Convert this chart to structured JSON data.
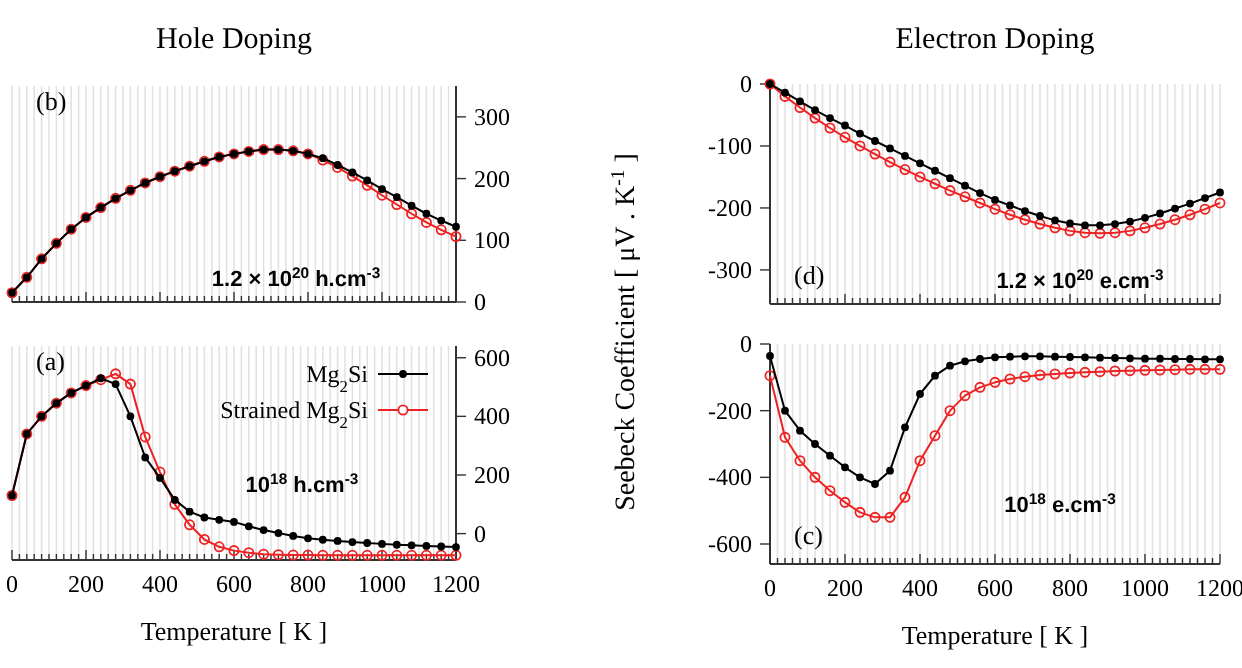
{
  "chart_data": [
    {
      "type": "line",
      "title": "Hole Doping",
      "annotations": [
        "(b)",
        "1.2 × 10$^{20}$ h.cm$^{-3}$"
      ],
      "x": [
        0,
        40,
        80,
        120,
        160,
        200,
        240,
        280,
        320,
        360,
        400,
        440,
        480,
        520,
        560,
        600,
        640,
        680,
        720,
        760,
        800,
        840,
        880,
        920,
        960,
        1000,
        1040,
        1080,
        1120,
        1160,
        1200
      ],
      "series": [
        {
          "color": "#000000",
          "values": [
            15,
            40,
            70,
            95,
            118,
            137,
            153,
            168,
            181,
            193,
            203,
            212,
            220,
            228,
            235,
            240,
            244,
            247,
            247,
            245,
            240,
            233,
            222,
            210,
            197,
            183,
            170,
            156,
            143,
            132,
            122
          ]
        },
        {
          "color": "#ee2222",
          "values": [
            15,
            40,
            70,
            95,
            118,
            137,
            153,
            168,
            181,
            193,
            203,
            212,
            220,
            228,
            235,
            240,
            244,
            247,
            247,
            245,
            240,
            230,
            218,
            204,
            189,
            173,
            158,
            143,
            129,
            117,
            106
          ]
        }
      ],
      "xlim": [
        0,
        1200
      ],
      "ylim": [
        0,
        350
      ],
      "yticks": [
        0,
        100,
        200,
        300
      ],
      "xticks": [
        0,
        {
          "value": 20,
          "label": null
        },
        {
          "value": 40,
          "label": null
        },
        {
          "value": 60,
          "label": null
        },
        {
          "value": 80,
          "label": null
        },
        {
          "value": 100,
          "label": null
        },
        {
          "value": 120,
          "label": null
        },
        {
          "value": 140,
          "label": null
        },
        {
          "value": 160,
          "label": null
        },
        {
          "value": 180,
          "label": null
        },
        200,
        {
          "value": 220,
          "label": null
        },
        {
          "value": 240,
          "label": null
        },
        {
          "value": 260,
          "label": null
        },
        {
          "value": 280,
          "label": null
        },
        {
          "value": 300,
          "label": null
        },
        {
          "value": 320,
          "label": null
        },
        {
          "value": 340,
          "label": null
        },
        {
          "value": 360,
          "label": null
        },
        {
          "value": 380,
          "label": null
        },
        400,
        {
          "value": 420,
          "label": null
        },
        {
          "value": 440,
          "label": null
        },
        {
          "value": 460,
          "label": null
        },
        {
          "value": 480,
          "label": null
        },
        {
          "value": 500,
          "label": null
        },
        {
          "value": 520,
          "label": null
        },
        {
          "value": 540,
          "label": null
        },
        {
          "value": 560,
          "label": null
        },
        {
          "value": 580,
          "label": null
        },
        600,
        {
          "value": 620,
          "label": null
        },
        {
          "value": 640,
          "label": null
        },
        {
          "value": 660,
          "label": null
        },
        {
          "value": 680,
          "label": null
        },
        {
          "value": 700,
          "label": null
        },
        {
          "value": 720,
          "label": null
        },
        {
          "value": 740,
          "label": null
        },
        {
          "value": 760,
          "label": null
        },
        {
          "value": 780,
          "label": null
        },
        800,
        {
          "value": 820,
          "label": null
        },
        {
          "value": 840,
          "label": null
        },
        {
          "value": 860,
          "label": null
        },
        {
          "value": 880,
          "label": null
        },
        {
          "value": 900,
          "label": null
        },
        {
          "value": 920,
          "label": null
        },
        {
          "value": 940,
          "label": null
        },
        {
          "value": 960,
          "label": null
        },
        {
          "value": 980,
          "label": null
        },
        1000,
        {
          "value": 1020,
          "label": null
        },
        {
          "value": 1040,
          "label": null
        },
        {
          "value": 1060,
          "label": null
        },
        {
          "value": 1080,
          "label": null
        },
        {
          "value": 1100,
          "label": null
        },
        {
          "value": 1120,
          "label": null
        },
        {
          "value": 1140,
          "label": null
        },
        {
          "value": 1160,
          "label": null
        },
        {
          "value": 1180,
          "label": null
        },
        1200
      ],
      "tick_labels": "y",
      "grid": "x",
      "marker": "circle",
      "line_style": "solid",
      "legend": false
    },
    {
      "type": "line",
      "title": "Electron Doping",
      "ylabel": "Seebeck Coefficient [ μV . K$^{-1}$ ]",
      "annotations": [
        "(d)",
        "1.2 × 10$^{20}$ e.cm$^{-3}$"
      ],
      "x": [
        0,
        40,
        80,
        120,
        160,
        200,
        240,
        280,
        320,
        360,
        400,
        440,
        480,
        520,
        560,
        600,
        640,
        680,
        720,
        760,
        800,
        840,
        880,
        920,
        960,
        1000,
        1040,
        1080,
        1120,
        1160,
        1200
      ],
      "series": [
        {
          "color": "#000000",
          "values": [
            0,
            -14,
            -28,
            -42,
            -55,
            -67,
            -80,
            -92,
            -104,
            -116,
            -128,
            -140,
            -152,
            -164,
            -176,
            -187,
            -196,
            -205,
            -213,
            -220,
            -225,
            -228,
            -228,
            -226,
            -222,
            -216,
            -209,
            -201,
            -193,
            -184,
            -175
          ]
        },
        {
          "color": "#ee2222",
          "values": [
            0,
            -20,
            -38,
            -55,
            -71,
            -86,
            -100,
            -113,
            -126,
            -138,
            -150,
            -161,
            -172,
            -182,
            -192,
            -202,
            -211,
            -219,
            -226,
            -232,
            -237,
            -240,
            -241,
            -240,
            -237,
            -232,
            -226,
            -219,
            -211,
            -202,
            -192
          ]
        }
      ],
      "xlim": [
        0,
        1200
      ],
      "ylim": [
        -355,
        0
      ],
      "yticks": [
        0,
        -100,
        -200,
        -300
      ],
      "xticks": [
        0,
        {
          "value": 20,
          "label": null
        },
        {
          "value": 40,
          "label": null
        },
        {
          "value": 60,
          "label": null
        },
        {
          "value": 80,
          "label": null
        },
        {
          "value": 100,
          "label": null
        },
        {
          "value": 120,
          "label": null
        },
        {
          "value": 140,
          "label": null
        },
        {
          "value": 160,
          "label": null
        },
        {
          "value": 180,
          "label": null
        },
        200,
        {
          "value": 220,
          "label": null
        },
        {
          "value": 240,
          "label": null
        },
        {
          "value": 260,
          "label": null
        },
        {
          "value": 280,
          "label": null
        },
        {
          "value": 300,
          "label": null
        },
        {
          "value": 320,
          "label": null
        },
        {
          "value": 340,
          "label": null
        },
        {
          "value": 360,
          "label": null
        },
        {
          "value": 380,
          "label": null
        },
        400,
        {
          "value": 420,
          "label": null
        },
        {
          "value": 440,
          "label": null
        },
        {
          "value": 460,
          "label": null
        },
        {
          "value": 480,
          "label": null
        },
        {
          "value": 500,
          "label": null
        },
        {
          "value": 520,
          "label": null
        },
        {
          "value": 540,
          "label": null
        },
        {
          "value": 560,
          "label": null
        },
        {
          "value": 580,
          "label": null
        },
        600,
        {
          "value": 620,
          "label": null
        },
        {
          "value": 640,
          "label": null
        },
        {
          "value": 660,
          "label": null
        },
        {
          "value": 680,
          "label": null
        },
        {
          "value": 700,
          "label": null
        },
        {
          "value": 720,
          "label": null
        },
        {
          "value": 740,
          "label": null
        },
        {
          "value": 760,
          "label": null
        },
        {
          "value": 780,
          "label": null
        },
        800,
        {
          "value": 820,
          "label": null
        },
        {
          "value": 840,
          "label": null
        },
        {
          "value": 860,
          "label": null
        },
        {
          "value": 880,
          "label": null
        },
        {
          "value": 900,
          "label": null
        },
        {
          "value": 920,
          "label": null
        },
        {
          "value": 940,
          "label": null
        },
        {
          "value": 960,
          "label": null
        },
        {
          "value": 980,
          "label": null
        },
        1000,
        {
          "value": 1020,
          "label": null
        },
        {
          "value": 1040,
          "label": null
        },
        {
          "value": 1060,
          "label": null
        },
        {
          "value": 1080,
          "label": null
        },
        {
          "value": 1100,
          "label": null
        },
        {
          "value": 1120,
          "label": null
        },
        {
          "value": 1140,
          "label": null
        },
        {
          "value": 1160,
          "label": null
        },
        {
          "value": 1180,
          "label": null
        },
        1200
      ],
      "tick_labels": "y",
      "grid": "x",
      "marker": "circle",
      "line_style": "solid",
      "legend": false
    },
    {
      "type": "line",
      "xlabel": "Temperature [ K ]",
      "annotations": [
        "(a)",
        "10$^{18}$ h.cm$^{-3}$"
      ],
      "x": [
        0,
        40,
        80,
        120,
        160,
        200,
        240,
        280,
        320,
        360,
        400,
        440,
        480,
        520,
        560,
        600,
        640,
        680,
        720,
        760,
        800,
        840,
        880,
        920,
        960,
        1000,
        1040,
        1080,
        1120,
        1160,
        1200
      ],
      "series": [
        {
          "name": "Mg$_{2}$Si",
          "color": "#000000",
          "values": [
            130,
            340,
            400,
            445,
            480,
            505,
            530,
            510,
            400,
            260,
            190,
            115,
            75,
            55,
            47,
            40,
            25,
            12,
            2,
            -8,
            -16,
            -21,
            -25,
            -29,
            -32,
            -35,
            -38,
            -40,
            -42,
            -44,
            -46
          ]
        },
        {
          "name": "Strained Mg$_{2}$Si",
          "color": "#ee2222",
          "values": [
            130,
            340,
            400,
            445,
            480,
            505,
            525,
            545,
            510,
            330,
            210,
            100,
            30,
            -20,
            -45,
            -58,
            -65,
            -70,
            -72,
            -73,
            -73,
            -74,
            -74,
            -74,
            -74,
            -74,
            -74,
            -74,
            -74,
            -74,
            -74
          ]
        }
      ],
      "xlim": [
        0,
        1200
      ],
      "ylim": [
        -90,
        640
      ],
      "yticks": [
        0,
        200,
        400,
        600
      ],
      "xticks": [
        0,
        {
          "value": 20,
          "label": null
        },
        {
          "value": 40,
          "label": null
        },
        {
          "value": 60,
          "label": null
        },
        {
          "value": 80,
          "label": null
        },
        {
          "value": 100,
          "label": null
        },
        {
          "value": 120,
          "label": null
        },
        {
          "value": 140,
          "label": null
        },
        {
          "value": 160,
          "label": null
        },
        {
          "value": 180,
          "label": null
        },
        200,
        {
          "value": 220,
          "label": null
        },
        {
          "value": 240,
          "label": null
        },
        {
          "value": 260,
          "label": null
        },
        {
          "value": 280,
          "label": null
        },
        {
          "value": 300,
          "label": null
        },
        {
          "value": 320,
          "label": null
        },
        {
          "value": 340,
          "label": null
        },
        {
          "value": 360,
          "label": null
        },
        {
          "value": 380,
          "label": null
        },
        400,
        {
          "value": 420,
          "label": null
        },
        {
          "value": 440,
          "label": null
        },
        {
          "value": 460,
          "label": null
        },
        {
          "value": 480,
          "label": null
        },
        {
          "value": 500,
          "label": null
        },
        {
          "value": 520,
          "label": null
        },
        {
          "value": 540,
          "label": null
        },
        {
          "value": 560,
          "label": null
        },
        {
          "value": 580,
          "label": null
        },
        600,
        {
          "value": 620,
          "label": null
        },
        {
          "value": 640,
          "label": null
        },
        {
          "value": 660,
          "label": null
        },
        {
          "value": 680,
          "label": null
        },
        {
          "value": 700,
          "label": null
        },
        {
          "value": 720,
          "label": null
        },
        {
          "value": 740,
          "label": null
        },
        {
          "value": 760,
          "label": null
        },
        {
          "value": 780,
          "label": null
        },
        800,
        {
          "value": 820,
          "label": null
        },
        {
          "value": 840,
          "label": null
        },
        {
          "value": 860,
          "label": null
        },
        {
          "value": 880,
          "label": null
        },
        {
          "value": 900,
          "label": null
        },
        {
          "value": 920,
          "label": null
        },
        {
          "value": 940,
          "label": null
        },
        {
          "value": 960,
          "label": null
        },
        {
          "value": 980,
          "label": null
        },
        1000,
        {
          "value": 1020,
          "label": null
        },
        {
          "value": 1040,
          "label": null
        },
        {
          "value": 1060,
          "label": null
        },
        {
          "value": 1080,
          "label": null
        },
        {
          "value": 1100,
          "label": null
        },
        {
          "value": 1120,
          "label": null
        },
        {
          "value": 1140,
          "label": null
        },
        {
          "value": 1160,
          "label": null
        },
        {
          "value": 1180,
          "label": null
        },
        1200
      ],
      "grid": "x",
      "marker": "circle",
      "line_style": "solid",
      "legend": "top right"
    },
    {
      "type": "line",
      "xlabel": "Temperature [ K ]",
      "annotations": [
        "(c)",
        "10$^{18}$ e.cm$^{-3}$"
      ],
      "x": [
        0,
        40,
        80,
        120,
        160,
        200,
        240,
        280,
        320,
        360,
        400,
        440,
        480,
        520,
        560,
        600,
        640,
        680,
        720,
        760,
        800,
        840,
        880,
        920,
        960,
        1000,
        1040,
        1080,
        1120,
        1160,
        1200
      ],
      "series": [
        {
          "color": "#000000",
          "values": [
            -36,
            -200,
            -260,
            -300,
            -335,
            -370,
            -400,
            -420,
            -380,
            -250,
            -150,
            -95,
            -65,
            -52,
            -45,
            -40,
            -38,
            -37,
            -37,
            -38,
            -39,
            -40,
            -41,
            -42,
            -43,
            -44,
            -44,
            -45,
            -45,
            -46,
            -46
          ]
        },
        {
          "color": "#ee2222",
          "values": [
            -95,
            -280,
            -350,
            -400,
            -440,
            -475,
            -505,
            -520,
            -520,
            -460,
            -350,
            -275,
            -200,
            -155,
            -130,
            -115,
            -105,
            -98,
            -93,
            -90,
            -87,
            -85,
            -83,
            -81,
            -80,
            -79,
            -78,
            -77,
            -76,
            -76,
            -76
          ]
        }
      ],
      "xlim": [
        0,
        1200
      ],
      "ylim": [
        -660,
        0
      ],
      "yticks": [
        0,
        -200,
        -400,
        -600
      ],
      "xticks": [
        0,
        {
          "value": 20,
          "label": null
        },
        {
          "value": 40,
          "label": null
        },
        {
          "value": 60,
          "label": null
        },
        {
          "value": 80,
          "label": null
        },
        {
          "value": 100,
          "label": null
        },
        {
          "value": 120,
          "label": null
        },
        {
          "value": 140,
          "label": null
        },
        {
          "value": 160,
          "label": null
        },
        {
          "value": 180,
          "label": null
        },
        200,
        {
          "value": 220,
          "label": null
        },
        {
          "value": 240,
          "label": null
        },
        {
          "value": 260,
          "label": null
        },
        {
          "value": 280,
          "label": null
        },
        {
          "value": 300,
          "label": null
        },
        {
          "value": 320,
          "label": null
        },
        {
          "value": 340,
          "label": null
        },
        {
          "value": 360,
          "label": null
        },
        {
          "value": 380,
          "label": null
        },
        400,
        {
          "value": 420,
          "label": null
        },
        {
          "value": 440,
          "label": null
        },
        {
          "value": 460,
          "label": null
        },
        {
          "value": 480,
          "label": null
        },
        {
          "value": 500,
          "label": null
        },
        {
          "value": 520,
          "label": null
        },
        {
          "value": 540,
          "label": null
        },
        {
          "value": 560,
          "label": null
        },
        {
          "value": 580,
          "label": null
        },
        600,
        {
          "value": 620,
          "label": null
        },
        {
          "value": 640,
          "label": null
        },
        {
          "value": 660,
          "label": null
        },
        {
          "value": 680,
          "label": null
        },
        {
          "value": 700,
          "label": null
        },
        {
          "value": 720,
          "label": null
        },
        {
          "value": 740,
          "label": null
        },
        {
          "value": 760,
          "label": null
        },
        {
          "value": 780,
          "label": null
        },
        800,
        {
          "value": 820,
          "label": null
        },
        {
          "value": 840,
          "label": null
        },
        {
          "value": 860,
          "label": null
        },
        {
          "value": 880,
          "label": null
        },
        {
          "value": 900,
          "label": null
        },
        {
          "value": 920,
          "label": null
        },
        {
          "value": 940,
          "label": null
        },
        {
          "value": 960,
          "label": null
        },
        {
          "value": 980,
          "label": null
        },
        1000,
        {
          "value": 1020,
          "label": null
        },
        {
          "value": 1040,
          "label": null
        },
        {
          "value": 1060,
          "label": null
        },
        {
          "value": 1080,
          "label": null
        },
        {
          "value": 1100,
          "label": null
        },
        {
          "value": 1120,
          "label": null
        },
        {
          "value": 1140,
          "label": null
        },
        {
          "value": 1160,
          "label": null
        },
        {
          "value": 1180,
          "label": null
        },
        1200
      ],
      "grid": "x",
      "marker": "circle",
      "line_style": "solid",
      "legend": false
    }
  ]
}
